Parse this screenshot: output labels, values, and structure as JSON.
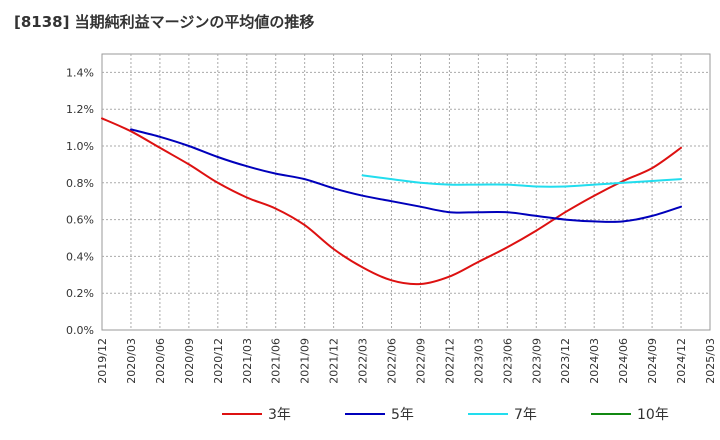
{
  "chart_data": {
    "type": "line",
    "title": "[8138]  当期純利益マージンの平均値の推移",
    "xlabel": "",
    "ylabel": "",
    "x_tick_labels": [
      "2019/12",
      "2020/03",
      "2020/06",
      "2020/09",
      "2020/12",
      "2021/03",
      "2021/06",
      "2021/09",
      "2021/12",
      "2022/03",
      "2022/06",
      "2022/09",
      "2022/12",
      "2023/03",
      "2023/06",
      "2023/09",
      "2023/12",
      "2024/03",
      "2024/06",
      "2024/09",
      "2024/12",
      "2025/03"
    ],
    "y_tick_labels": [
      "0.0%",
      "0.2%",
      "0.4%",
      "0.6%",
      "0.8%",
      "1.0%",
      "1.2%",
      "1.4%"
    ],
    "ylim": [
      0,
      1.5
    ],
    "y_unit": "%",
    "grid": true,
    "legend_position": "bottom",
    "series": [
      {
        "name": "3年",
        "color": "#dd1111",
        "points": [
          [
            "2019/12",
            1.15
          ],
          [
            "2020/03",
            1.08
          ],
          [
            "2020/06",
            0.99
          ],
          [
            "2020/09",
            0.9
          ],
          [
            "2020/12",
            0.8
          ],
          [
            "2021/03",
            0.72
          ],
          [
            "2021/06",
            0.66
          ],
          [
            "2021/09",
            0.57
          ],
          [
            "2021/12",
            0.44
          ],
          [
            "2022/03",
            0.34
          ],
          [
            "2022/06",
            0.27
          ],
          [
            "2022/09",
            0.25
          ],
          [
            "2022/12",
            0.29
          ],
          [
            "2023/03",
            0.37
          ],
          [
            "2023/06",
            0.45
          ],
          [
            "2023/09",
            0.54
          ],
          [
            "2023/12",
            0.64
          ],
          [
            "2024/03",
            0.73
          ],
          [
            "2024/06",
            0.81
          ],
          [
            "2024/09",
            0.88
          ],
          [
            "2024/12",
            0.99
          ]
        ]
      },
      {
        "name": "5年",
        "color": "#0000bb",
        "points": [
          [
            "2020/03",
            1.09
          ],
          [
            "2020/06",
            1.05
          ],
          [
            "2020/09",
            1.0
          ],
          [
            "2020/12",
            0.94
          ],
          [
            "2021/03",
            0.89
          ],
          [
            "2021/06",
            0.85
          ],
          [
            "2021/09",
            0.82
          ],
          [
            "2021/12",
            0.77
          ],
          [
            "2022/03",
            0.73
          ],
          [
            "2022/06",
            0.7
          ],
          [
            "2022/09",
            0.67
          ],
          [
            "2022/12",
            0.64
          ],
          [
            "2023/03",
            0.64
          ],
          [
            "2023/06",
            0.64
          ],
          [
            "2023/09",
            0.62
          ],
          [
            "2023/12",
            0.6
          ],
          [
            "2024/03",
            0.59
          ],
          [
            "2024/06",
            0.59
          ],
          [
            "2024/09",
            0.62
          ],
          [
            "2024/12",
            0.67
          ]
        ]
      },
      {
        "name": "7年",
        "color": "#22ddee",
        "points": [
          [
            "2022/03",
            0.84
          ],
          [
            "2022/06",
            0.82
          ],
          [
            "2022/09",
            0.8
          ],
          [
            "2022/12",
            0.79
          ],
          [
            "2023/03",
            0.79
          ],
          [
            "2023/06",
            0.79
          ],
          [
            "2023/09",
            0.78
          ],
          [
            "2023/12",
            0.78
          ],
          [
            "2024/03",
            0.79
          ],
          [
            "2024/06",
            0.8
          ],
          [
            "2024/09",
            0.81
          ],
          [
            "2024/12",
            0.82
          ]
        ]
      },
      {
        "name": "10年",
        "color": "#118811",
        "points": []
      }
    ]
  }
}
